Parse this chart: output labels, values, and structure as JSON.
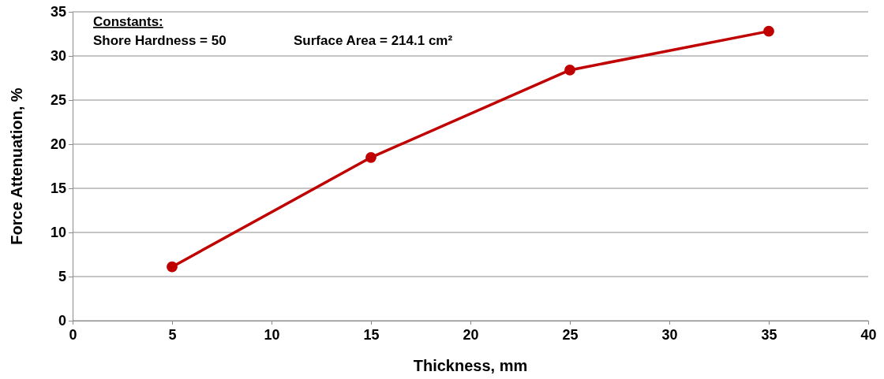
{
  "chart_data": {
    "type": "line",
    "xlabel": "Thickness, mm",
    "ylabel": "Force Attenuation, %",
    "x": [
      5,
      15,
      25,
      35
    ],
    "series": [
      {
        "color": "#c00000",
        "values": [
          6.1,
          18.5,
          28.4,
          32.8
        ]
      }
    ],
    "xlim": [
      0,
      40
    ],
    "xticks": [
      0,
      5,
      10,
      15,
      20,
      25,
      30,
      35,
      40
    ],
    "ylim": [
      0,
      35
    ],
    "yticks": [
      0,
      5,
      10,
      15,
      20,
      25,
      30,
      35
    ],
    "grid": "y",
    "marker": "circle",
    "line_style": "solid",
    "annotations": [
      "Constants:",
      "Shore Hardness = 50",
      "Surface  Area = 214.1  cm²"
    ]
  }
}
